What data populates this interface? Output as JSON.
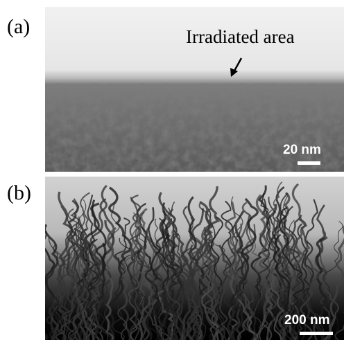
{
  "panel_a": {
    "label": "(a)",
    "annotation": "Irradiated area",
    "scale_bar": "20 nm"
  },
  "panel_b": {
    "label": "(b)",
    "scale_bar": "200 nm"
  }
}
